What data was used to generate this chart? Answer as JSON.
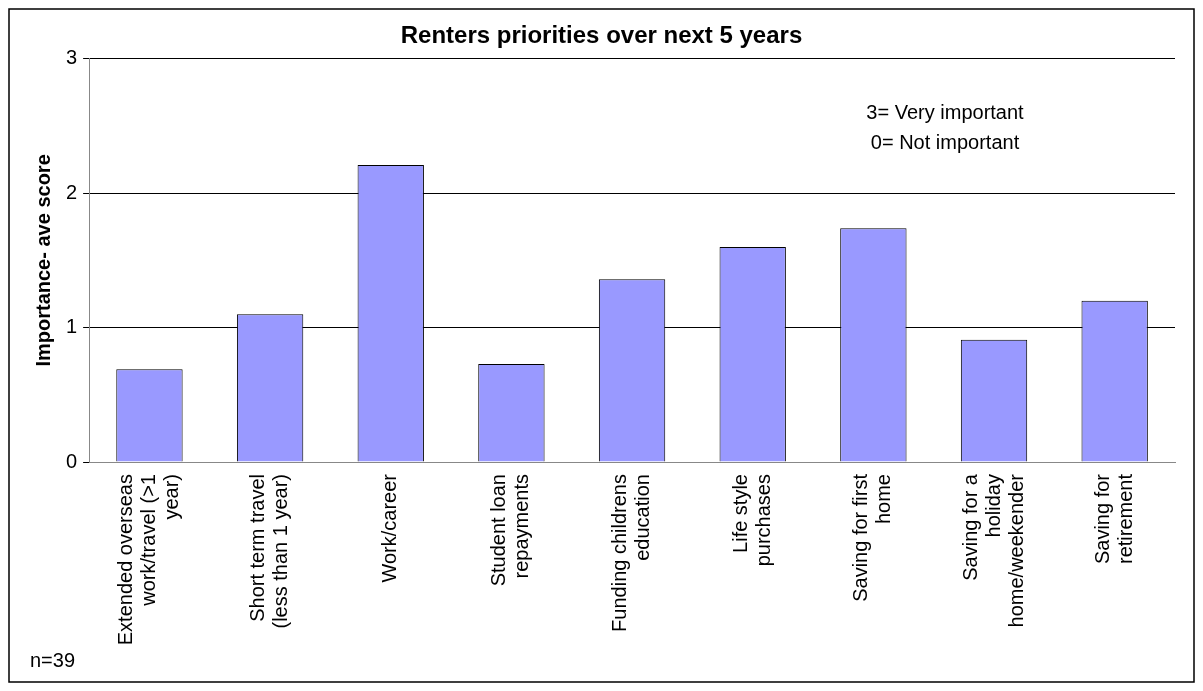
{
  "chart_data": {
    "type": "bar",
    "title": "Renters priorities over next 5 years",
    "ylabel": "Importance- ave score",
    "categories": [
      "Extended overseas work/travel (>1 year)",
      "Short term travel (less than 1 year)",
      "Work/career",
      "Student loan repayments",
      "Funding childrens education",
      "Life style purchases",
      "Saving for first home",
      "Saving for a holiday home/weekender",
      "Saving for retirement"
    ],
    "values": [
      0.69,
      1.1,
      2.21,
      0.73,
      1.36,
      1.6,
      1.74,
      0.91,
      1.2
    ],
    "color": "#9999ff",
    "ylim": [
      0,
      3
    ],
    "yticks": [
      0,
      1,
      2,
      3
    ],
    "grid": "y",
    "legend": false,
    "annotations": [
      "3= Very important",
      "0= Not important",
      "n=39"
    ]
  }
}
